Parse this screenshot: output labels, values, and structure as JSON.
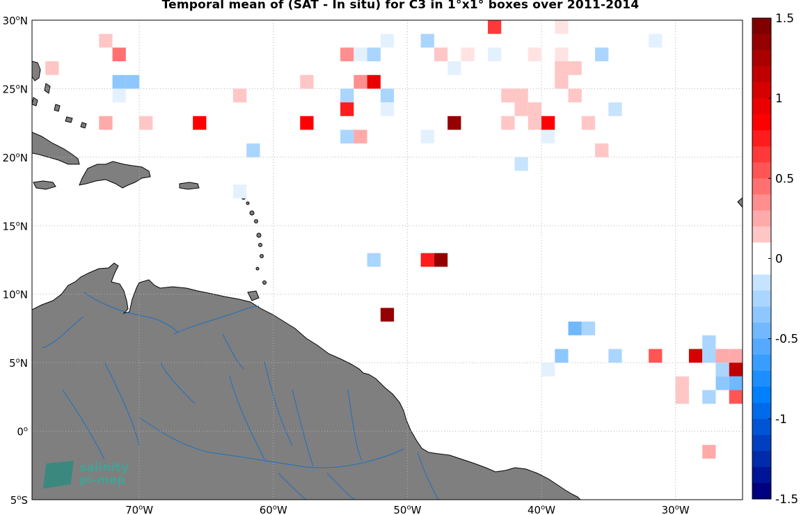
{
  "title": "Temporal mean of (SAT - In situ) for C3 in 1°x1° boxes over 2011-2014",
  "colors": {
    "land": "#7f7f7f",
    "rivers": "#1f6fbf",
    "grid": "#b3b3b3",
    "ocean": "#ffffff"
  },
  "map": {
    "lon_range": [
      -78,
      -25
    ],
    "lat_range": [
      -5,
      30
    ],
    "grid": "dotted",
    "lon_ticks": [
      {
        "value": -70,
        "number": "70",
        "hemi": "W"
      },
      {
        "value": -60,
        "number": "60",
        "hemi": "W"
      },
      {
        "value": -50,
        "number": "50",
        "hemi": "W"
      },
      {
        "value": -40,
        "number": "40",
        "hemi": "W"
      },
      {
        "value": -30,
        "number": "30",
        "hemi": "W"
      }
    ],
    "lat_ticks": [
      {
        "value": 30,
        "number": "30",
        "hemi": "N"
      },
      {
        "value": 25,
        "number": "25",
        "hemi": "N"
      },
      {
        "value": 20,
        "number": "20",
        "hemi": "N"
      },
      {
        "value": 15,
        "number": "15",
        "hemi": "N"
      },
      {
        "value": 10,
        "number": "10",
        "hemi": "N"
      },
      {
        "value": 5,
        "number": "5",
        "hemi": "N"
      },
      {
        "value": 0,
        "number": "0",
        "hemi": ""
      },
      {
        "value": -5,
        "number": "5",
        "hemi": "S"
      }
    ]
  },
  "colorbar": {
    "min": -1.5,
    "max": 1.5,
    "steps": 30,
    "tick_labels": [
      {
        "value": 1.5,
        "label": "1.5"
      },
      {
        "value": 1,
        "label": "1"
      },
      {
        "value": 0.5,
        "label": "0.5"
      },
      {
        "value": 0,
        "label": "0"
      },
      {
        "value": -0.5,
        "label": "-0.5"
      },
      {
        "value": -1,
        "label": "-1"
      },
      {
        "value": -1.5,
        "label": "-1.5"
      }
    ]
  },
  "logo": {
    "line1": "salinity",
    "line2": "pi-mep"
  },
  "chart_data": {
    "type": "heatmap",
    "title": "Temporal mean of (SAT - In situ) for C3 in 1°x1° boxes over 2011-2014",
    "x_units": "degrees longitude (negative = W)",
    "y_units": "degrees latitude",
    "cell_size_deg": 1,
    "clim": [
      -1.5,
      1.5
    ],
    "cells": [
      {
        "lon": -72.5,
        "lat": 28.5,
        "value": 0.15
      },
      {
        "lon": -51.5,
        "lat": 28.5,
        "value": -0.1
      },
      {
        "lon": -48.5,
        "lat": 28.5,
        "value": -0.25
      },
      {
        "lon": -43.5,
        "lat": 29.5,
        "value": 0.65
      },
      {
        "lon": -38.5,
        "lat": 29.5,
        "value": 0.1
      },
      {
        "lon": -31.5,
        "lat": 28.5,
        "value": -0.1
      },
      {
        "lon": -71.5,
        "lat": 27.5,
        "value": 0.5
      },
      {
        "lon": -54.5,
        "lat": 27.5,
        "value": 0.4
      },
      {
        "lon": -53.5,
        "lat": 27.5,
        "value": -0.1
      },
      {
        "lon": -52.5,
        "lat": 27.5,
        "value": -0.25
      },
      {
        "lon": -47.5,
        "lat": 27.5,
        "value": 0.2
      },
      {
        "lon": -45.5,
        "lat": 27.5,
        "value": 0.1
      },
      {
        "lon": -43.5,
        "lat": 27.5,
        "value": -0.1
      },
      {
        "lon": -40.5,
        "lat": 27.5,
        "value": 0.1
      },
      {
        "lon": -38.5,
        "lat": 27.5,
        "value": 0.1
      },
      {
        "lon": -35.5,
        "lat": 27.5,
        "value": -0.25
      },
      {
        "lon": -76.5,
        "lat": 26.5,
        "value": 0.15
      },
      {
        "lon": -46.5,
        "lat": 26.5,
        "value": -0.1
      },
      {
        "lon": -38.5,
        "lat": 26.5,
        "value": 0.2
      },
      {
        "lon": -37.5,
        "lat": 26.5,
        "value": 0.2
      },
      {
        "lon": -71.5,
        "lat": 25.5,
        "value": -0.35
      },
      {
        "lon": -70.5,
        "lat": 25.5,
        "value": -0.35
      },
      {
        "lon": -57.5,
        "lat": 25.5,
        "value": 0.15
      },
      {
        "lon": -53.5,
        "lat": 25.5,
        "value": 0.35
      },
      {
        "lon": -52.5,
        "lat": 25.5,
        "value": 1.0
      },
      {
        "lon": -38.5,
        "lat": 25.5,
        "value": 0.2
      },
      {
        "lon": -71.5,
        "lat": 24.5,
        "value": -0.1
      },
      {
        "lon": -62.5,
        "lat": 24.5,
        "value": 0.15
      },
      {
        "lon": -54.5,
        "lat": 24.5,
        "value": -0.3
      },
      {
        "lon": -51.5,
        "lat": 24.5,
        "value": -0.25
      },
      {
        "lon": -42.5,
        "lat": 24.5,
        "value": 0.15
      },
      {
        "lon": -41.5,
        "lat": 24.5,
        "value": 0.15
      },
      {
        "lon": -37.5,
        "lat": 24.5,
        "value": 0.15
      },
      {
        "lon": -54.5,
        "lat": 23.5,
        "value": 0.8
      },
      {
        "lon": -51.5,
        "lat": 23.5,
        "value": -0.1
      },
      {
        "lon": -41.5,
        "lat": 23.5,
        "value": 0.15
      },
      {
        "lon": -40.5,
        "lat": 23.5,
        "value": 0.15
      },
      {
        "lon": -34.5,
        "lat": 23.5,
        "value": -0.15
      },
      {
        "lon": -72.5,
        "lat": 22.5,
        "value": 0.3
      },
      {
        "lon": -69.5,
        "lat": 22.5,
        "value": 0.15
      },
      {
        "lon": -65.5,
        "lat": 22.5,
        "value": 0.85
      },
      {
        "lon": -57.5,
        "lat": 22.5,
        "value": 0.85
      },
      {
        "lon": -46.5,
        "lat": 22.5,
        "value": 1.35
      },
      {
        "lon": -42.5,
        "lat": 22.5,
        "value": 0.15
      },
      {
        "lon": -40.5,
        "lat": 22.5,
        "value": 0.15
      },
      {
        "lon": -39.5,
        "lat": 22.5,
        "value": 0.9
      },
      {
        "lon": -36.5,
        "lat": 22.5,
        "value": 0.15
      },
      {
        "lon": -54.5,
        "lat": 21.5,
        "value": -0.25
      },
      {
        "lon": -53.5,
        "lat": 21.5,
        "value": 0.25
      },
      {
        "lon": -48.5,
        "lat": 21.5,
        "value": -0.1
      },
      {
        "lon": -39.5,
        "lat": 21.5,
        "value": -0.1
      },
      {
        "lon": -61.5,
        "lat": 20.5,
        "value": -0.3
      },
      {
        "lon": -35.5,
        "lat": 20.5,
        "value": 0.2
      },
      {
        "lon": -41.5,
        "lat": 19.5,
        "value": -0.15
      },
      {
        "lon": -62.5,
        "lat": 17.5,
        "value": -0.1
      },
      {
        "lon": -52.5,
        "lat": 12.5,
        "value": -0.3
      },
      {
        "lon": -48.5,
        "lat": 12.5,
        "value": 0.75
      },
      {
        "lon": -47.5,
        "lat": 12.5,
        "value": 1.4
      },
      {
        "lon": -51.5,
        "lat": 8.5,
        "value": 1.4
      },
      {
        "lon": -37.5,
        "lat": 7.5,
        "value": -0.45
      },
      {
        "lon": -36.5,
        "lat": 7.5,
        "value": -0.25
      },
      {
        "lon": -27.5,
        "lat": 6.5,
        "value": -0.3
      },
      {
        "lon": -38.5,
        "lat": 5.5,
        "value": -0.4
      },
      {
        "lon": -34.5,
        "lat": 5.5,
        "value": -0.3
      },
      {
        "lon": -31.5,
        "lat": 5.5,
        "value": 0.6
      },
      {
        "lon": -28.5,
        "lat": 5.5,
        "value": 1.1
      },
      {
        "lon": -27.5,
        "lat": 5.5,
        "value": -0.3
      },
      {
        "lon": -26.5,
        "lat": 5.5,
        "value": 0.25
      },
      {
        "lon": -25.5,
        "lat": 5.5,
        "value": 0.25
      },
      {
        "lon": -39.5,
        "lat": 4.5,
        "value": -0.1
      },
      {
        "lon": -26.5,
        "lat": 4.5,
        "value": -0.3
      },
      {
        "lon": -25.5,
        "lat": 4.5,
        "value": 1.2
      },
      {
        "lon": -29.5,
        "lat": 3.5,
        "value": 0.15
      },
      {
        "lon": -26.5,
        "lat": 3.5,
        "value": -0.35
      },
      {
        "lon": -25.5,
        "lat": 3.5,
        "value": -0.45
      },
      {
        "lon": -29.5,
        "lat": 2.5,
        "value": 0.15
      },
      {
        "lon": -27.5,
        "lat": 2.5,
        "value": -0.25
      },
      {
        "lon": -25.5,
        "lat": 2.5,
        "value": 0.6
      },
      {
        "lon": -27.5,
        "lat": -1.5,
        "value": 0.3
      }
    ]
  }
}
